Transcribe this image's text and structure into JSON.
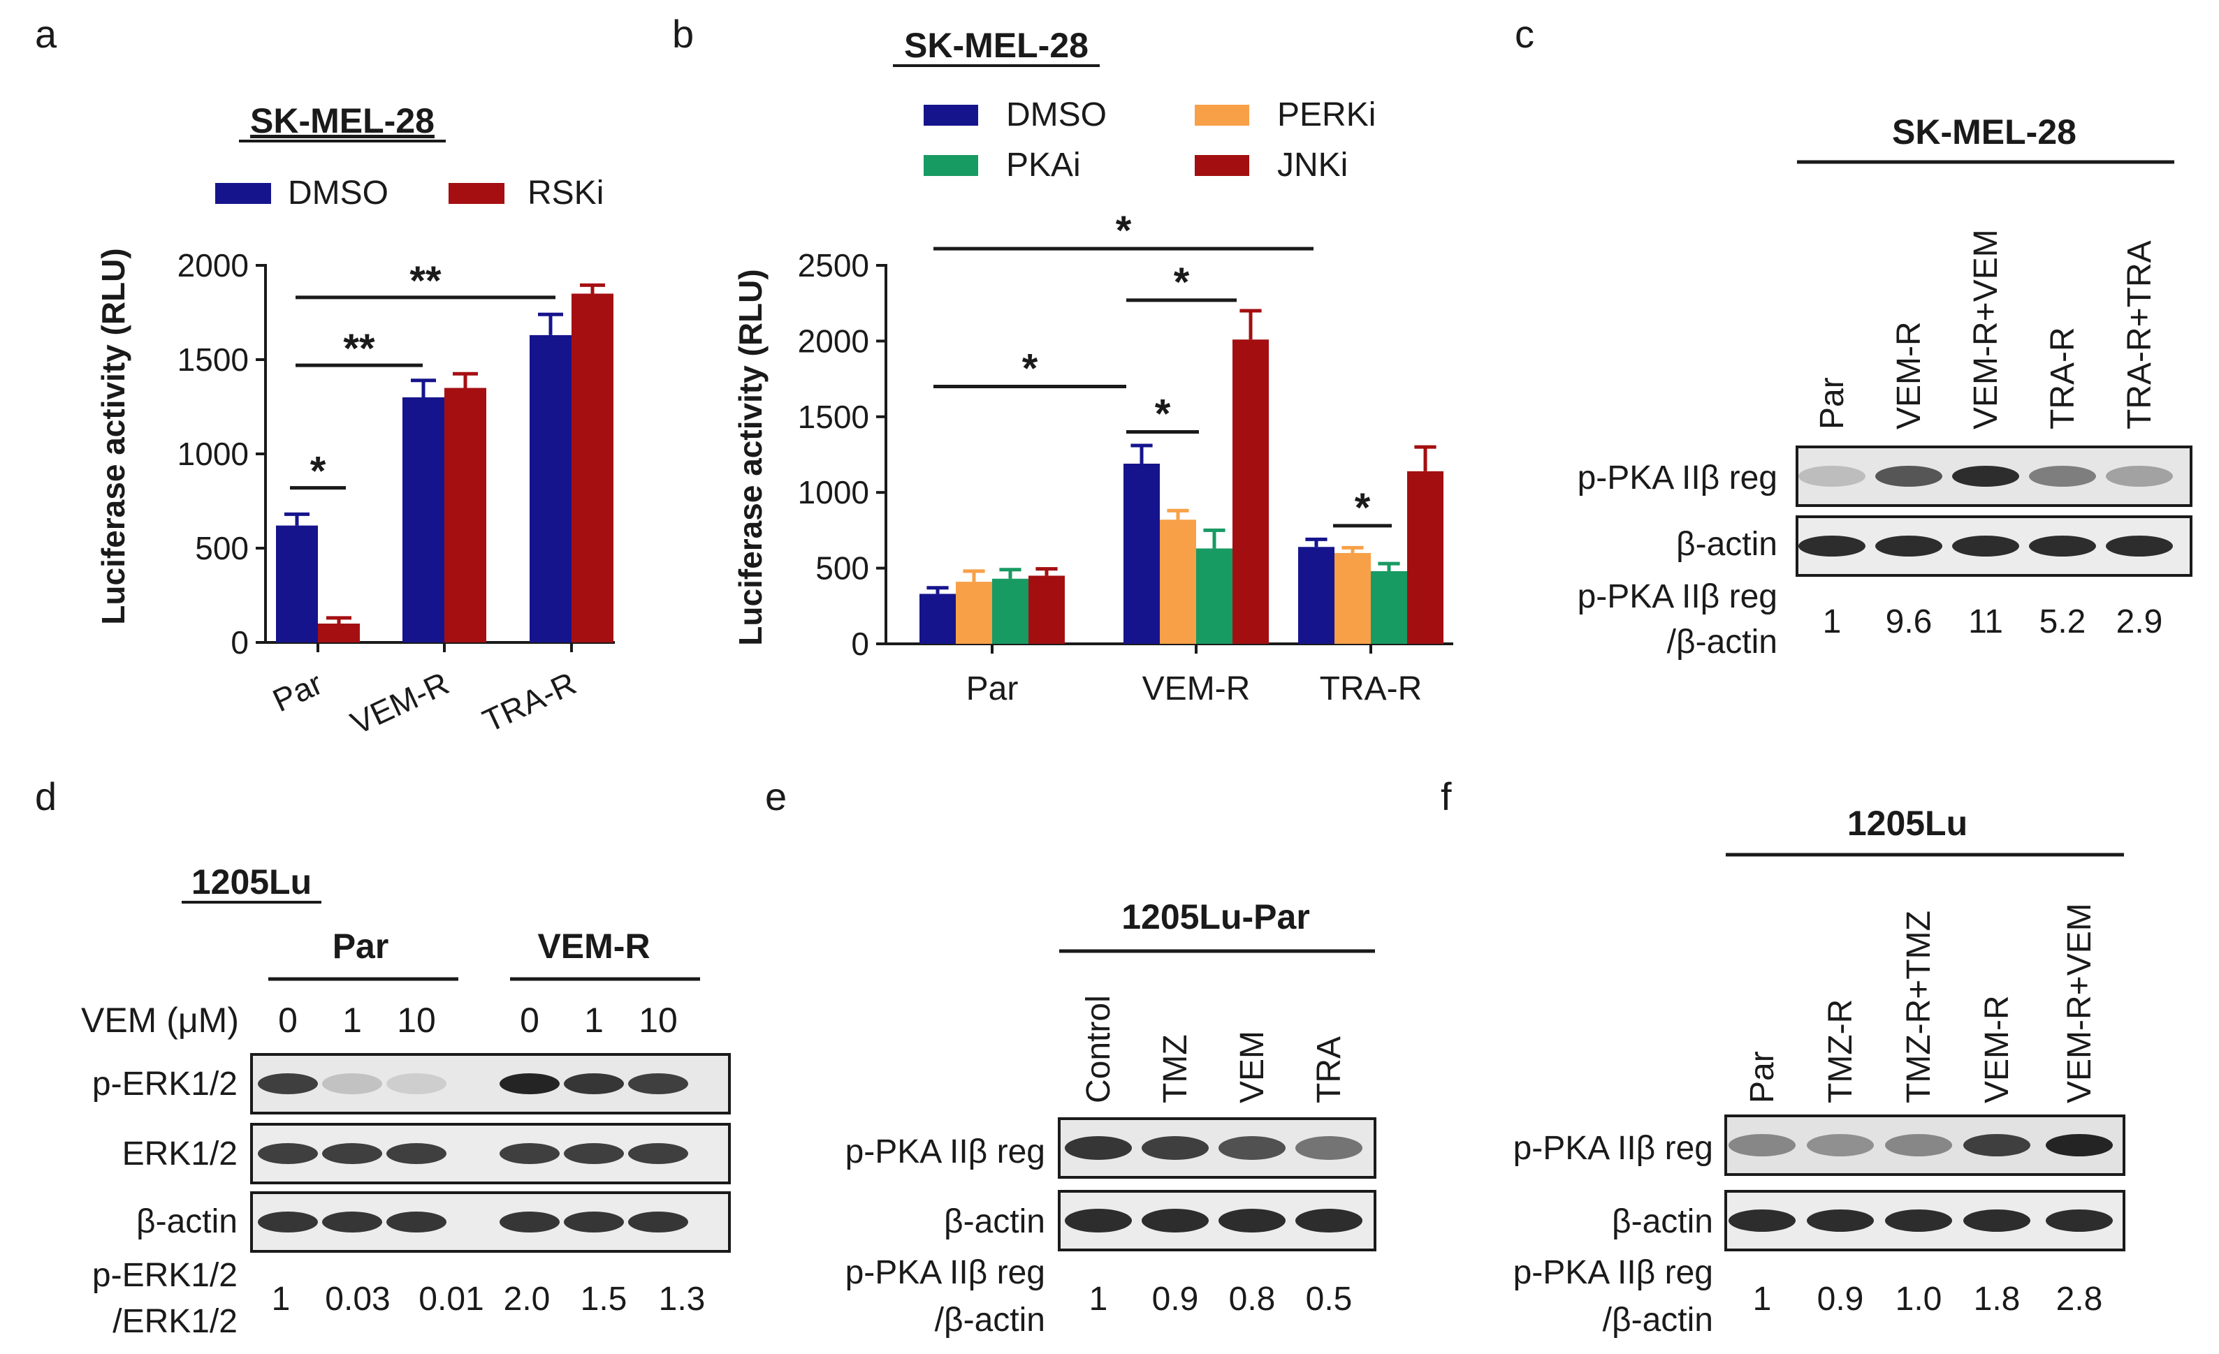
{
  "colors": {
    "dmso": "#16148C",
    "rski": "#A50F12",
    "perki": "#F8A048",
    "pkai": "#189A63",
    "jnki": "#A30F10",
    "ink": "#1a1a1a"
  },
  "panels": {
    "a": {
      "letter": "a",
      "title": "SK-MEL-28"
    },
    "b": {
      "letter": "b",
      "title": "SK-MEL-28"
    },
    "c": {
      "letter": "c",
      "title": "SK-MEL-28",
      "lanes": [
        "Par",
        "VEM-R",
        "VEM-R+VEM",
        "TRA-R",
        "TRA-R+TRA"
      ],
      "rows": [
        "p-PKA IIβ reg",
        "β-actin"
      ],
      "ratio_label": [
        "p-PKA IIβ reg",
        "/β-actin"
      ],
      "ratios": [
        "1",
        "9.6",
        "11",
        "5.2",
        "2.9"
      ],
      "band_intensity": [
        0.15,
        0.72,
        0.95,
        0.5,
        0.3
      ]
    },
    "d": {
      "letter": "d",
      "title": "1205Lu",
      "groups": [
        "Par",
        "VEM-R"
      ],
      "dose_label": "VEM (μM)",
      "doses": [
        "0",
        "1",
        "10",
        "0",
        "1",
        "10"
      ],
      "rows": [
        "p-ERK1/2",
        "ERK1/2",
        "β-actin"
      ],
      "ratio_label": [
        "p-ERK1/2",
        "/ERK1/2"
      ],
      "ratios": [
        "1",
        "0.03",
        "0.01",
        "2.0",
        "1.5",
        "1.3"
      ],
      "band_intensity": [
        0.85,
        0.12,
        0.06,
        1.0,
        0.9,
        0.85
      ]
    },
    "e": {
      "letter": "e",
      "title": "1205Lu-Par",
      "lanes": [
        "Control",
        "TMZ",
        "VEM",
        "TRA"
      ],
      "rows": [
        "p-PKA IIβ reg",
        "β-actin"
      ],
      "ratio_label": [
        "p-PKA IIβ reg",
        "/β-actin"
      ],
      "ratios": [
        "1",
        "0.9",
        "0.8",
        "0.5"
      ],
      "band_intensity": [
        0.9,
        0.85,
        0.75,
        0.55
      ]
    },
    "f": {
      "letter": "f",
      "title": "1205Lu",
      "lanes": [
        "Par",
        "TMZ-R",
        "TMZ-R+TMZ",
        "VEM-R",
        "VEM-R+VEM"
      ],
      "rows": [
        "p-PKA IIβ reg",
        "β-actin"
      ],
      "ratio_label": [
        "p-PKA IIβ reg",
        "/β-actin"
      ],
      "ratios": [
        "1",
        "0.9",
        "1.0",
        "1.8",
        "2.8"
      ],
      "band_intensity": [
        0.45,
        0.4,
        0.45,
        0.85,
        1.0
      ]
    }
  },
  "chart_data": [
    {
      "panel": "a",
      "type": "bar",
      "title": "SK-MEL-28",
      "xlabel": "",
      "ylabel": "Luciferase activity (RLU)",
      "ylim": [
        0,
        2000
      ],
      "yticks": [
        "0",
        "500",
        "1000",
        "1500",
        "2000"
      ],
      "categories": [
        "Par",
        "VEM-R",
        "TRA-R"
      ],
      "series": [
        {
          "name": "DMSO",
          "values": [
            620,
            1300,
            1630
          ],
          "errors": [
            60,
            90,
            110
          ]
        },
        {
          "name": "RSKi",
          "values": [
            100,
            1350,
            1850
          ],
          "errors": [
            30,
            75,
            45
          ]
        }
      ],
      "significance": [
        {
          "from": "Par:DMSO",
          "to": "Par:RSKi",
          "label": "*"
        },
        {
          "from": "Par",
          "to": "VEM-R",
          "label": "**"
        },
        {
          "from": "Par",
          "to": "TRA-R",
          "label": "**"
        }
      ]
    },
    {
      "panel": "b",
      "type": "bar",
      "title": "SK-MEL-28",
      "xlabel": "",
      "ylabel": "Luciferase activity (RLU)",
      "ylim": [
        0,
        2500
      ],
      "yticks": [
        "0",
        "500",
        "1000",
        "1500",
        "2000",
        "2500"
      ],
      "categories": [
        "Par",
        "VEM-R",
        "TRA-R"
      ],
      "series": [
        {
          "name": "DMSO",
          "values": [
            330,
            1190,
            640
          ],
          "errors": [
            40,
            120,
            50
          ]
        },
        {
          "name": "PERKi",
          "values": [
            410,
            820,
            600
          ],
          "errors": [
            70,
            60,
            35
          ]
        },
        {
          "name": "PKAi",
          "values": [
            430,
            630,
            480
          ],
          "errors": [
            60,
            120,
            50
          ]
        },
        {
          "name": "JNKi",
          "values": [
            450,
            2010,
            1140
          ],
          "errors": [
            45,
            190,
            160
          ]
        }
      ],
      "significance": [
        {
          "from": "Par:DMSO",
          "to": "VEM-R:DMSO",
          "label": "*"
        },
        {
          "from": "Par:DMSO",
          "to": "TRA-R:DMSO",
          "label": "*"
        },
        {
          "from": "VEM-R:DMSO",
          "to": "VEM-R:PKAi",
          "label": "*"
        },
        {
          "from": "VEM-R:DMSO",
          "to": "VEM-R:JNKi",
          "label": "*"
        },
        {
          "from": "TRA-R:DMSO",
          "to": "TRA-R:PKAi",
          "label": "*"
        }
      ]
    }
  ]
}
